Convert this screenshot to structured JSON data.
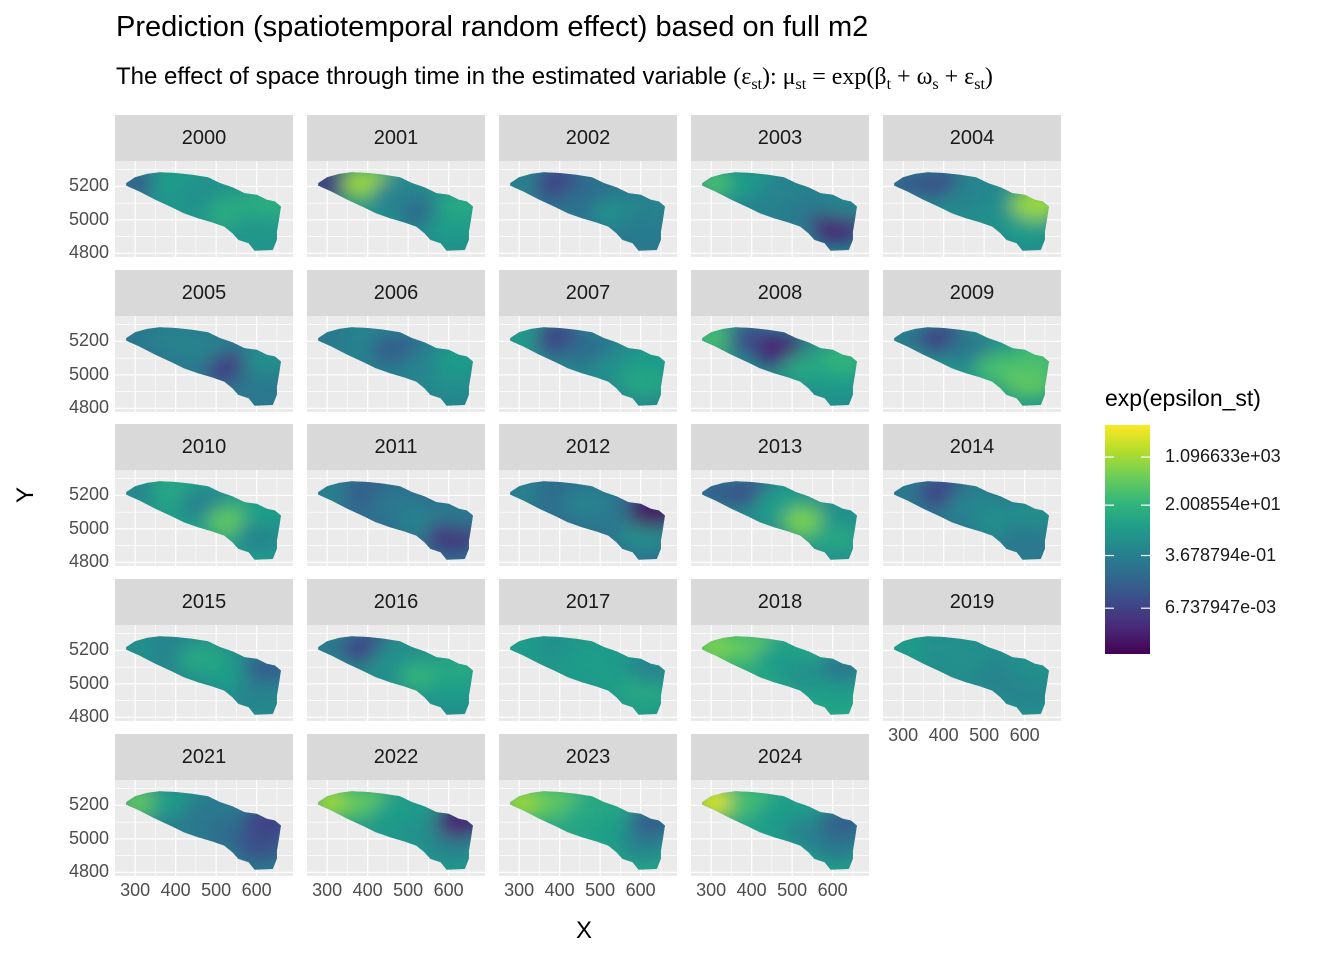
{
  "chart_data": {
    "type": "heatmap",
    "title": "Prediction (spatiotemporal random effect) based on full m2",
    "subtitle": {
      "prefix": "The effect of space through time in the estimated variable ",
      "formula": "(ε_st): μ_st = exp(β_t + ω_s + ε_st)"
    },
    "xlabel": "X",
    "ylabel": "Y",
    "x_ticks": [
      "300",
      "400",
      "500",
      "600"
    ],
    "y_ticks": [
      "5200",
      "5000",
      "4800"
    ],
    "xlim": [
      270,
      670
    ],
    "ylim": [
      4790,
      5340
    ],
    "facets": [
      "2000",
      "2001",
      "2002",
      "2003",
      "2004",
      "2005",
      "2006",
      "2007",
      "2008",
      "2009",
      "2010",
      "2011",
      "2012",
      "2013",
      "2014",
      "2015",
      "2016",
      "2017",
      "2018",
      "2019",
      "2021",
      "2022",
      "2023",
      "2024"
    ],
    "facet_field_levels": [
      [
        0.3,
        0.55,
        0.5,
        0.62,
        0.52,
        0.62
      ],
      [
        0.15,
        0.85,
        0.45,
        0.35,
        0.55,
        0.6
      ],
      [
        0.45,
        0.2,
        0.35,
        0.5,
        0.42,
        0.45
      ],
      [
        0.7,
        0.55,
        0.45,
        0.4,
        0.1,
        0.45
      ],
      [
        0.3,
        0.25,
        0.45,
        0.5,
        0.55,
        0.85
      ],
      [
        0.4,
        0.45,
        0.45,
        0.18,
        0.4,
        0.5
      ],
      [
        0.4,
        0.45,
        0.3,
        0.45,
        0.5,
        0.55
      ],
      [
        0.55,
        0.2,
        0.35,
        0.5,
        0.6,
        0.55
      ],
      [
        0.7,
        0.25,
        0.1,
        0.6,
        0.55,
        0.65
      ],
      [
        0.4,
        0.2,
        0.4,
        0.7,
        0.75,
        0.7
      ],
      [
        0.45,
        0.6,
        0.45,
        0.75,
        0.45,
        0.55
      ],
      [
        0.45,
        0.3,
        0.4,
        0.45,
        0.15,
        0.4
      ],
      [
        0.45,
        0.35,
        0.45,
        0.4,
        0.5,
        0.05
      ],
      [
        0.3,
        0.25,
        0.55,
        0.8,
        0.6,
        0.5
      ],
      [
        0.4,
        0.2,
        0.45,
        0.5,
        0.4,
        0.5
      ],
      [
        0.5,
        0.45,
        0.6,
        0.55,
        0.45,
        0.3
      ],
      [
        0.4,
        0.2,
        0.5,
        0.65,
        0.55,
        0.6
      ],
      [
        0.55,
        0.5,
        0.55,
        0.55,
        0.6,
        0.45
      ],
      [
        0.8,
        0.75,
        0.55,
        0.5,
        0.55,
        0.4
      ],
      [
        0.55,
        0.5,
        0.5,
        0.45,
        0.45,
        0.5
      ],
      [
        0.75,
        0.55,
        0.4,
        0.35,
        0.25,
        0.2
      ],
      [
        0.85,
        0.75,
        0.55,
        0.5,
        0.45,
        0.1
      ],
      [
        0.85,
        0.75,
        0.6,
        0.55,
        0.45,
        0.3
      ],
      [
        0.95,
        0.7,
        0.55,
        0.45,
        0.4,
        0.3
      ]
    ],
    "fill_scale": {
      "name": "exp(epsilon_st)",
      "palette": "viridis",
      "breaks": [
        "1.096633e+03",
        "2.008554e+01",
        "3.678794e-01",
        "6.737947e-03"
      ],
      "break_levels": [
        0.86,
        0.65,
        0.43,
        0.2
      ]
    },
    "colors": {
      "panel_bg": "#ebebeb",
      "strip_bg": "#d9d9d9",
      "grid": "#ffffff"
    }
  }
}
